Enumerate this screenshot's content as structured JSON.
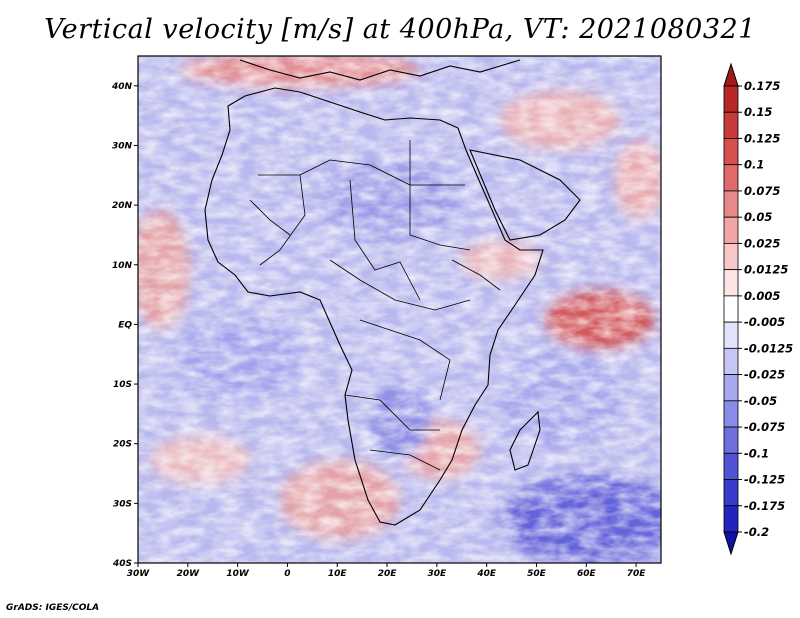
{
  "title": "Vertical velocity [m/s] at 400hPa, VT: 2021080321",
  "footer": "GrADS: IGES/COLA",
  "map": {
    "lon_range": [
      -30,
      75
    ],
    "lat_range": [
      -40,
      45
    ],
    "lon_ticks": [
      "30W",
      "20W",
      "10W",
      "0",
      "10E",
      "20E",
      "30E",
      "40E",
      "50E",
      "60E",
      "70E"
    ],
    "lat_ticks": [
      "40S",
      "30S",
      "20S",
      "10S",
      "EQ",
      "10N",
      "20N",
      "30N",
      "40N"
    ],
    "region": "Africa"
  },
  "colorbar": {
    "labels": [
      "0.175",
      "0.15",
      "0.125",
      "0.1",
      "0.075",
      "0.05",
      "0.025",
      "0.0125",
      "0.005",
      "-0.005",
      "-0.0125",
      "-0.025",
      "-0.05",
      "-0.075",
      "-0.1",
      "-0.125",
      "-0.175",
      "-0.2"
    ],
    "colors": [
      "#a11a1a",
      "#b82828",
      "#c93a3a",
      "#d65050",
      "#e06a6a",
      "#e98888",
      "#f1a6a6",
      "#f7c6c6",
      "#fce4e4",
      "#ffffff",
      "#e2e2fb",
      "#c6c6f6",
      "#a8a8f0",
      "#8b8be9",
      "#6f6fe0",
      "#5252d6",
      "#3a3acb",
      "#2323bd",
      "#1010a8"
    ]
  }
}
